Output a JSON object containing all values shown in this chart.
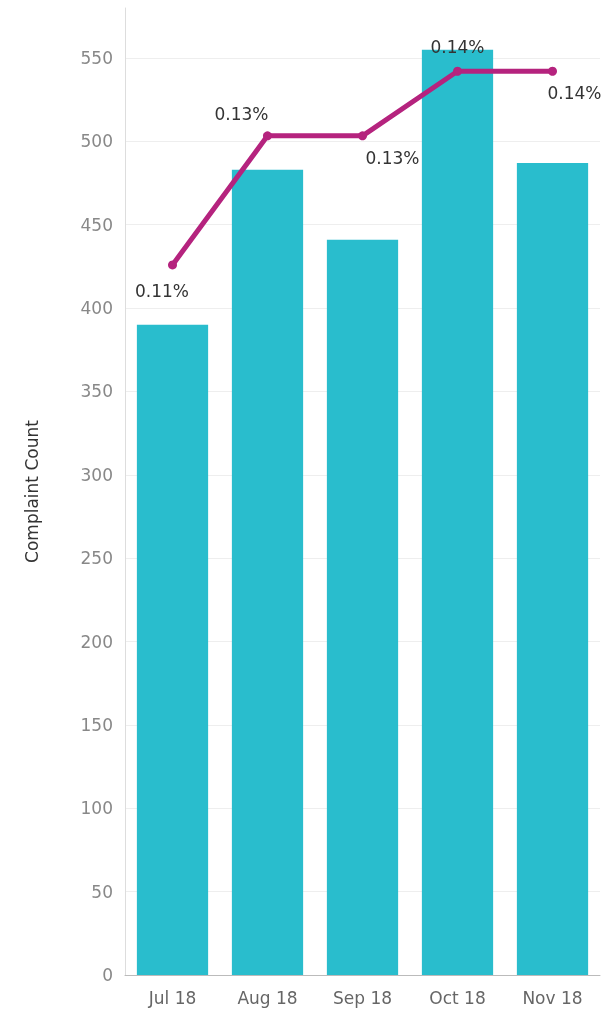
{
  "chart_data": {
    "type": "bar",
    "ylabel": "Complaint Count",
    "categories": [
      "Jul 18",
      "Aug 18",
      "Sep 18",
      "Oct 18",
      "Nov 18"
    ],
    "series": [
      {
        "color": "#29bdcd",
        "values": [
          390,
          483,
          441,
          555,
          487
        ]
      },
      {
        "type": "line",
        "axis": "y2",
        "color": "#b5237e",
        "values": [
          0.11,
          0.13,
          0.13,
          0.14,
          0.14
        ],
        "value_labels": [
          "0.11%",
          "0.13%",
          "0.13%",
          "0.14%",
          "0.14%"
        ]
      }
    ],
    "ylim": [
      0,
      580
    ],
    "yticks": [
      0,
      50,
      100,
      150,
      200,
      250,
      300,
      350,
      400,
      450,
      500,
      550
    ],
    "grid": "y",
    "marker": "circle",
    "line_style": "solid"
  }
}
